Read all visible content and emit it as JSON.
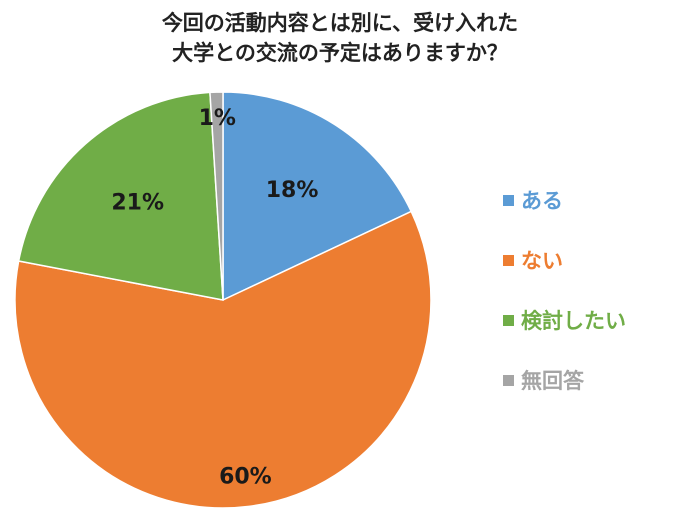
{
  "chart_data": {
    "type": "pie",
    "title": [
      "今回の活動内容とは別に、受け入れた",
      "大学との交流の予定はありますか？"
    ],
    "slices": [
      {
        "label": "ある",
        "value": 18,
        "display": "18%",
        "color": "#5b9bd5"
      },
      {
        "label": "ない",
        "value": 60,
        "display": "60%",
        "color": "#ed7d31"
      },
      {
        "label": "検討したい",
        "value": 21,
        "display": "21%",
        "color": "#70ad47"
      },
      {
        "label": "無回答",
        "value": 1,
        "display": "1%",
        "color": "#a5a5a5"
      }
    ],
    "legend_position": "right",
    "start_angle": "12 o'clock",
    "direction": "clockwise"
  }
}
